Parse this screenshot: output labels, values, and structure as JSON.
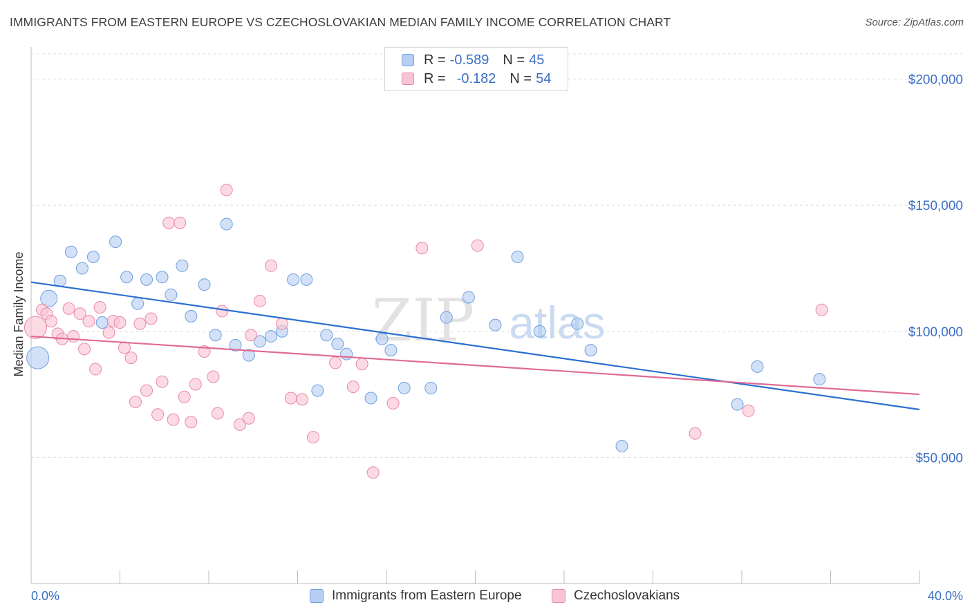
{
  "header": {
    "title": "IMMIGRANTS FROM EASTERN EUROPE VS CZECHOSLOVAKIAN MEDIAN FAMILY INCOME CORRELATION CHART",
    "source": "Source: ZipAtlas.com"
  },
  "legend": {
    "row1": {
      "r_label": "R = ",
      "r_value": "-0.589",
      "n_label": "N = ",
      "n_value": "45"
    },
    "row2": {
      "r_label": "R = ",
      "r_value": "-0.182",
      "n_label": "N = ",
      "n_value": "54"
    }
  },
  "watermark": {
    "zip": "ZIP",
    "atlas": "atlas"
  },
  "colors": {
    "blue_fill": "#b6cff2",
    "blue_stroke": "#6e9fde",
    "blue_line": "#2a6fd0",
    "pink_fill": "#f8c4d4",
    "pink_stroke": "#e889a8",
    "pink_line": "#e06a94",
    "axis_text": "#3a6fc4",
    "grid": "#dcdcdc"
  },
  "chart_data": {
    "type": "scatter",
    "title": "IMMIGRANTS FROM EASTERN EUROPE VS CZECHOSLOVAKIAN MEDIAN FAMILY INCOME CORRELATION CHART",
    "xlabel": "",
    "ylabel": "Median Family Income",
    "xlim": [
      0,
      40
    ],
    "ylim": [
      0,
      210000
    ],
    "x_tick_labels": [
      "0.0%",
      "40.0%"
    ],
    "y_ticks": [
      {
        "value": 50000,
        "label": "$50,000"
      },
      {
        "value": 100000,
        "label": "$100,000"
      },
      {
        "value": 150000,
        "label": "$150,000"
      },
      {
        "value": 200000,
        "label": "$200,000"
      }
    ],
    "series": [
      {
        "name": "Immigrants from Eastern Europe",
        "color": "blue",
        "r": -0.589,
        "n": 45,
        "trend": {
          "x": [
            0,
            40
          ],
          "y": [
            119500,
            69000
          ]
        },
        "points": [
          {
            "x": 0.3,
            "y": 89500,
            "size": "xl"
          },
          {
            "x": 0.8,
            "y": 113000,
            "size": "l"
          },
          {
            "x": 1.3,
            "y": 120000
          },
          {
            "x": 1.8,
            "y": 131500
          },
          {
            "x": 2.3,
            "y": 125000
          },
          {
            "x": 2.8,
            "y": 129500
          },
          {
            "x": 3.2,
            "y": 103500
          },
          {
            "x": 3.8,
            "y": 135500
          },
          {
            "x": 4.3,
            "y": 121500
          },
          {
            "x": 4.8,
            "y": 111000
          },
          {
            "x": 5.2,
            "y": 120500
          },
          {
            "x": 5.9,
            "y": 121500
          },
          {
            "x": 6.3,
            "y": 114500
          },
          {
            "x": 6.8,
            "y": 126000
          },
          {
            "x": 7.2,
            "y": 106000
          },
          {
            "x": 7.8,
            "y": 118500
          },
          {
            "x": 8.3,
            "y": 98500
          },
          {
            "x": 8.8,
            "y": 142500
          },
          {
            "x": 9.2,
            "y": 94500
          },
          {
            "x": 9.8,
            "y": 90500
          },
          {
            "x": 10.3,
            "y": 96000
          },
          {
            "x": 10.8,
            "y": 98000
          },
          {
            "x": 11.3,
            "y": 100000
          },
          {
            "x": 11.8,
            "y": 120500
          },
          {
            "x": 12.4,
            "y": 120500
          },
          {
            "x": 12.9,
            "y": 76500
          },
          {
            "x": 13.3,
            "y": 98500
          },
          {
            "x": 13.8,
            "y": 95000
          },
          {
            "x": 14.2,
            "y": 91000
          },
          {
            "x": 15.3,
            "y": 73500
          },
          {
            "x": 15.8,
            "y": 97000
          },
          {
            "x": 16.2,
            "y": 92500
          },
          {
            "x": 16.8,
            "y": 77500
          },
          {
            "x": 18.0,
            "y": 77500
          },
          {
            "x": 18.7,
            "y": 105500
          },
          {
            "x": 19.7,
            "y": 113500
          },
          {
            "x": 20.9,
            "y": 102500
          },
          {
            "x": 21.9,
            "y": 129500
          },
          {
            "x": 22.9,
            "y": 100000
          },
          {
            "x": 24.6,
            "y": 103000
          },
          {
            "x": 25.2,
            "y": 92500
          },
          {
            "x": 26.6,
            "y": 54500
          },
          {
            "x": 31.8,
            "y": 71000
          },
          {
            "x": 32.7,
            "y": 86000
          },
          {
            "x": 35.5,
            "y": 81000
          }
        ]
      },
      {
        "name": "Czechoslovakians",
        "color": "pink",
        "r": -0.182,
        "n": 54,
        "trend": {
          "x": [
            0,
            40
          ],
          "y": [
            98000,
            75000
          ]
        },
        "points": [
          {
            "x": 0.2,
            "y": 101500,
            "size": "xl"
          },
          {
            "x": 0.5,
            "y": 108500
          },
          {
            "x": 0.7,
            "y": 107000
          },
          {
            "x": 0.9,
            "y": 104000
          },
          {
            "x": 1.2,
            "y": 99000
          },
          {
            "x": 1.4,
            "y": 97000
          },
          {
            "x": 1.7,
            "y": 109000
          },
          {
            "x": 1.9,
            "y": 98000
          },
          {
            "x": 2.2,
            "y": 107000
          },
          {
            "x": 2.4,
            "y": 93000
          },
          {
            "x": 2.6,
            "y": 104000
          },
          {
            "x": 2.9,
            "y": 85000
          },
          {
            "x": 3.1,
            "y": 109500
          },
          {
            "x": 3.5,
            "y": 99500
          },
          {
            "x": 3.7,
            "y": 104000
          },
          {
            "x": 4.0,
            "y": 103500
          },
          {
            "x": 4.2,
            "y": 93500
          },
          {
            "x": 4.5,
            "y": 89500
          },
          {
            "x": 4.7,
            "y": 72000
          },
          {
            "x": 4.9,
            "y": 103000
          },
          {
            "x": 5.2,
            "y": 76500
          },
          {
            "x": 5.4,
            "y": 105000
          },
          {
            "x": 5.7,
            "y": 67000
          },
          {
            "x": 5.9,
            "y": 80000
          },
          {
            "x": 6.2,
            "y": 143000
          },
          {
            "x": 6.4,
            "y": 65000
          },
          {
            "x": 6.7,
            "y": 143000
          },
          {
            "x": 6.9,
            "y": 74000
          },
          {
            "x": 7.2,
            "y": 64000
          },
          {
            "x": 7.4,
            "y": 79000
          },
          {
            "x": 7.8,
            "y": 92000
          },
          {
            "x": 8.2,
            "y": 82000
          },
          {
            "x": 8.4,
            "y": 67500
          },
          {
            "x": 8.6,
            "y": 108000
          },
          {
            "x": 8.8,
            "y": 156000
          },
          {
            "x": 9.4,
            "y": 63000
          },
          {
            "x": 9.8,
            "y": 65500
          },
          {
            "x": 9.9,
            "y": 98500
          },
          {
            "x": 10.3,
            "y": 112000
          },
          {
            "x": 10.8,
            "y": 126000
          },
          {
            "x": 11.3,
            "y": 103000
          },
          {
            "x": 11.7,
            "y": 73500
          },
          {
            "x": 12.2,
            "y": 73000
          },
          {
            "x": 12.7,
            "y": 58000
          },
          {
            "x": 13.7,
            "y": 87500
          },
          {
            "x": 14.5,
            "y": 78000
          },
          {
            "x": 14.9,
            "y": 87000
          },
          {
            "x": 15.4,
            "y": 44000
          },
          {
            "x": 16.3,
            "y": 71500
          },
          {
            "x": 17.6,
            "y": 133000
          },
          {
            "x": 20.1,
            "y": 134000
          },
          {
            "x": 29.9,
            "y": 59500
          },
          {
            "x": 32.3,
            "y": 68500
          },
          {
            "x": 35.6,
            "y": 108500
          }
        ]
      }
    ]
  }
}
